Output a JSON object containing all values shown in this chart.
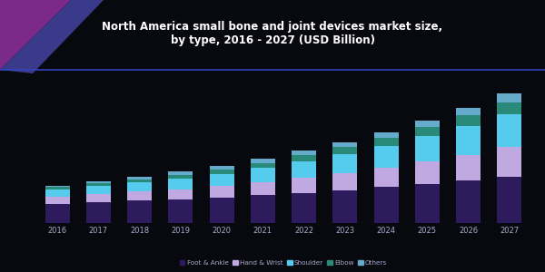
{
  "title": "North America small bone and joint devices market size,\nby type, 2016 - 2027 (USD Billion)",
  "years": [
    "2016",
    "2017",
    "2018",
    "2019",
    "2020",
    "2021",
    "2022",
    "2023",
    "2024",
    "2025",
    "2026",
    "2027"
  ],
  "segments": {
    "Foot & Ankle": [
      0.38,
      0.41,
      0.44,
      0.47,
      0.5,
      0.55,
      0.6,
      0.65,
      0.71,
      0.77,
      0.84,
      0.92
    ],
    "Hand & Wrist": [
      0.14,
      0.16,
      0.18,
      0.2,
      0.23,
      0.26,
      0.3,
      0.34,
      0.39,
      0.45,
      0.51,
      0.58
    ],
    "Shoulder": [
      0.14,
      0.16,
      0.18,
      0.21,
      0.24,
      0.28,
      0.32,
      0.37,
      0.43,
      0.5,
      0.57,
      0.65
    ],
    "Elbow": [
      0.05,
      0.06,
      0.07,
      0.08,
      0.09,
      0.1,
      0.12,
      0.14,
      0.16,
      0.18,
      0.21,
      0.24
    ],
    "Others": [
      0.03,
      0.04,
      0.05,
      0.06,
      0.07,
      0.08,
      0.09,
      0.1,
      0.11,
      0.13,
      0.15,
      0.17
    ]
  },
  "colors": [
    "#2d1b5e",
    "#c0a8e0",
    "#55ccee",
    "#2a8a7a",
    "#66aacc"
  ],
  "bg_color": "#08080f",
  "plot_bg_color": "#08080f",
  "text_color": "#aaaacc",
  "title_color": "#ffffff",
  "bar_width": 0.6,
  "legend_labels": [
    "Foot & Ankle",
    "Hand & Wrist",
    "Shoulder",
    "Elbow",
    "Others"
  ],
  "header_line_color": "#3344bb",
  "header_shape_color1": "#7b2a8a",
  "header_shape_color2": "#3a3a8a"
}
